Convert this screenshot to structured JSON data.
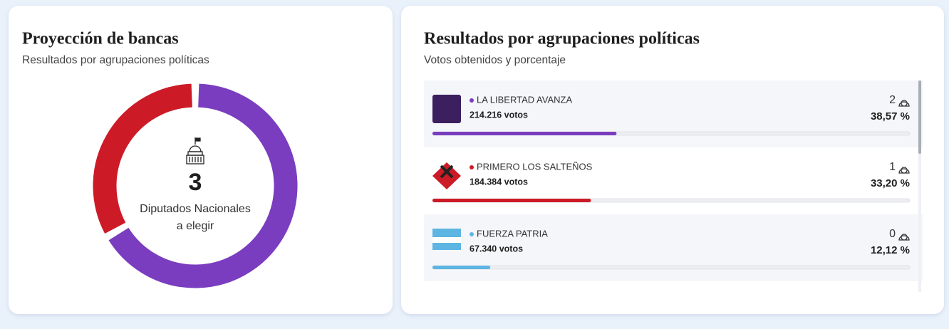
{
  "left_card": {
    "title": "Proyección de bancas",
    "subtitle": "Resultados por agrupaciones políticas",
    "total_seats": 3,
    "center_label_lines": [
      "Diputados Nacionales",
      "a elegir"
    ]
  },
  "right_card": {
    "title": "Resultados por agrupaciones políticas",
    "subtitle": "Votos obtenidos y porcentaje"
  },
  "parties": [
    {
      "name": "LA LIBERTAD AVANZA",
      "color": "#7a3dbf",
      "votes": 214216,
      "votes_label": "214.216 votos",
      "seats": 2,
      "percent": 38.57,
      "percent_label": "38,57 %"
    },
    {
      "name": "PRIMERO LOS SALTEÑOS",
      "color": "#cc1b27",
      "votes": 184384,
      "votes_label": "184.384 votos",
      "seats": 1,
      "percent": 33.2,
      "percent_label": "33,20 %"
    },
    {
      "name": "FUERZA PATRIA",
      "color": "#5db5e2",
      "votes": 67340,
      "votes_label": "67.340 votos",
      "seats": 0,
      "percent": 12.12,
      "percent_label": "12,12 %"
    }
  ]
}
